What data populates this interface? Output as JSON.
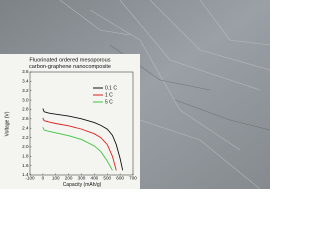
{
  "chart_data": {
    "type": "line",
    "title_lines": [
      "Fluorinated ordered mesoporous",
      "carbon-graphene nanocomposite"
    ],
    "x_label": "Capacity (mAh/g)",
    "y_label": "Voltage (V)",
    "x": [
      0,
      10,
      50,
      100,
      200,
      300,
      400,
      450,
      500,
      540,
      570,
      600,
      620
    ],
    "series": [
      {
        "name": "0.1 C",
        "color": "#111111",
        "values": [
          2.82,
          2.75,
          2.72,
          2.7,
          2.66,
          2.6,
          2.52,
          2.46,
          2.38,
          2.25,
          2.05,
          1.75,
          1.5
        ]
      },
      {
        "name": "1 C",
        "color": "#e0201c",
        "values": [
          2.62,
          2.56,
          2.53,
          2.5,
          2.45,
          2.38,
          2.28,
          2.2,
          2.05,
          1.8,
          1.5,
          null,
          null
        ]
      },
      {
        "name": "5 C",
        "color": "#3cc43c",
        "values": [
          2.42,
          2.36,
          2.33,
          2.3,
          2.24,
          2.16,
          2.02,
          1.9,
          1.7,
          1.5,
          null,
          null,
          null
        ]
      }
    ],
    "xlim": [
      -100,
      700
    ],
    "xticks": [
      -100,
      0,
      100,
      200,
      300,
      400,
      500,
      600,
      700
    ],
    "ylim": [
      1.4,
      3.6
    ],
    "yticks": [
      1.4,
      1.6,
      1.8,
      {
        "value": 2,
        "label": "2.0"
      },
      2.2,
      2.4,
      2.6,
      2.8,
      {
        "value": 3,
        "label": "3.0"
      },
      3.2,
      3.4,
      3.6
    ],
    "legend": "upper right"
  }
}
